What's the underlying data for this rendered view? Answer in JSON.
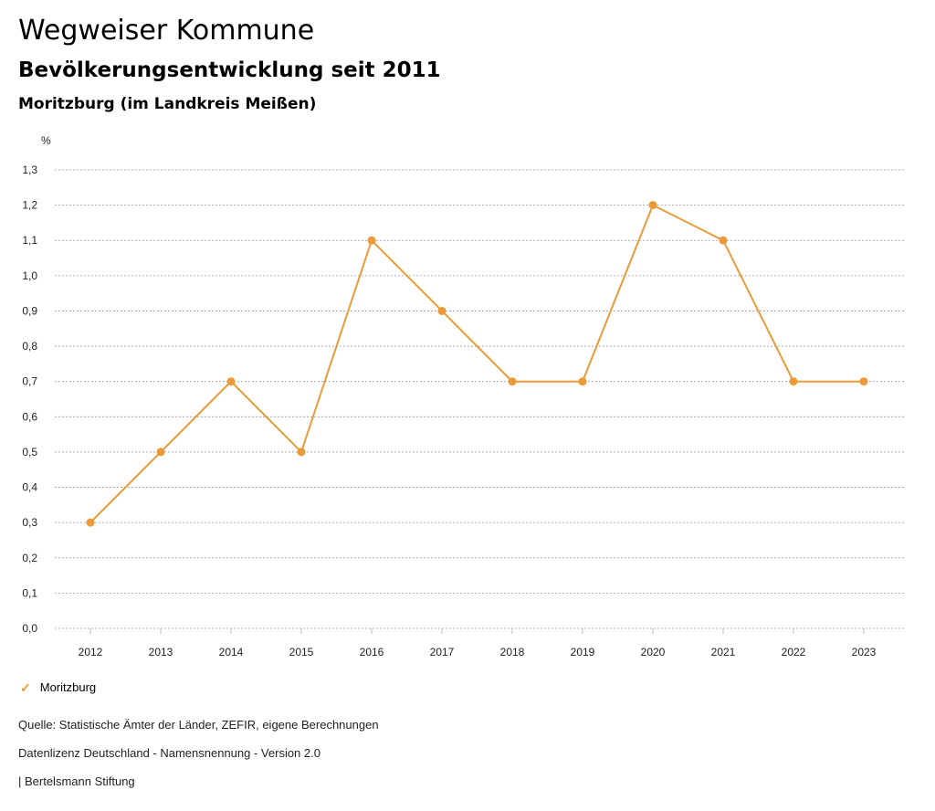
{
  "header": {
    "title": "Wegweiser Kommune",
    "subtitle": "Bevölkerungsentwicklung seit 2011",
    "region": "Moritzburg (im Landkreis Meißen)"
  },
  "chart_data": {
    "type": "line",
    "title": "Bevölkerungsentwicklung seit 2011",
    "xlabel": "",
    "ylabel": "%",
    "x": [
      "2012",
      "2013",
      "2014",
      "2015",
      "2016",
      "2017",
      "2018",
      "2019",
      "2020",
      "2021",
      "2022",
      "2023"
    ],
    "ylim": [
      0,
      1.3
    ],
    "yticks": [
      "0,0",
      "0,1",
      "0,2",
      "0,3",
      "0,4",
      "0,5",
      "0,6",
      "0,7",
      "0,8",
      "0,9",
      "1,0",
      "1,1",
      "1,2",
      "1,3"
    ],
    "grid": true,
    "series": [
      {
        "name": "Moritzburg",
        "color": "#ea9a36",
        "values": [
          0.3,
          0.5,
          0.7,
          0.5,
          1.1,
          0.9,
          0.7,
          0.7,
          1.2,
          1.1,
          0.7,
          0.7
        ]
      }
    ]
  },
  "legend": {
    "label": "Moritzburg",
    "color": "#ea9a36"
  },
  "footer": {
    "source": "Quelle: Statistische Ämter der Länder, ZEFIR, eigene Berechnungen",
    "license": "Datenlizenz Deutschland - Namensnennung - Version 2.0",
    "publisher": "| Bertelsmann Stiftung"
  }
}
